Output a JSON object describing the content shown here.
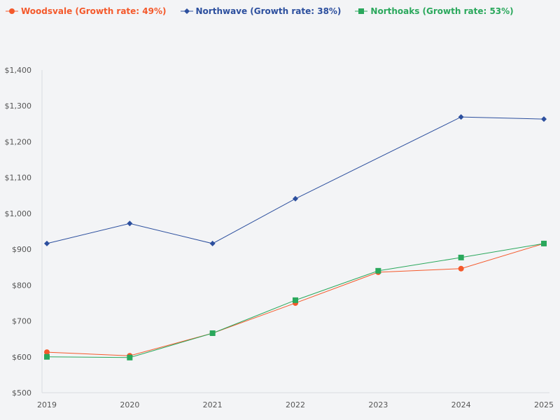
{
  "chart_data": {
    "type": "line",
    "x": [
      2019,
      2020,
      2021,
      2022,
      2023,
      2024,
      2025
    ],
    "ylim": [
      500,
      1400
    ],
    "yticks": [
      "$500",
      "$600",
      "$700",
      "$800",
      "$900",
      "$1,000",
      "$1,100",
      "$1,200",
      "$1,300",
      "$1,400"
    ],
    "ytick_values": [
      500,
      600,
      700,
      800,
      900,
      1000,
      1100,
      1200,
      1300,
      1400
    ],
    "xticks": [
      "2019",
      "2020",
      "2021",
      "2022",
      "2023",
      "2024",
      "2025"
    ],
    "grid": false,
    "legend_position": "top-left",
    "series": [
      {
        "name": "Woodsvale (Growth rate: 49%)",
        "color": "#f4592b",
        "marker": "circle",
        "values": [
          613,
          603,
          666,
          750,
          836,
          846,
          916
        ]
      },
      {
        "name": "Northwave (Growth rate: 38%)",
        "color": "#2c4f9e",
        "marker": "diamond",
        "values": [
          916,
          972,
          916,
          1041,
          null,
          1269,
          1263
        ]
      },
      {
        "name": "Northoaks (Growth rate: 53%)",
        "color": "#2aa85c",
        "marker": "square",
        "values": [
          600,
          598,
          666,
          758,
          840,
          877,
          916
        ]
      }
    ]
  }
}
